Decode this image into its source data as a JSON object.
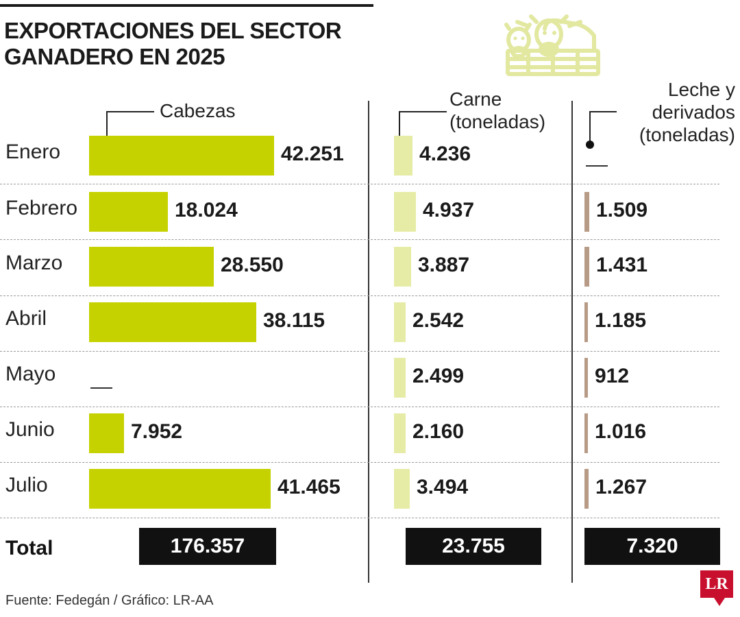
{
  "title": "EXPORTACIONES DEL SECTOR GANADERO EN 2025",
  "source": "Fuente: Fedegán / Gráfico: LR-AA",
  "logo": "LR",
  "icon": "cows-behind-fence-icon",
  "colors": {
    "cabezas": "#c5d200",
    "carne": "#e6eca6",
    "leche": "#b79b86",
    "total_bg": "#111111",
    "logo": "#c8102e"
  },
  "total_label": "Total",
  "chart_data": {
    "type": "bar",
    "orientation": "horizontal",
    "title": "EXPORTACIONES DEL SECTOR GANADERO EN 2025",
    "categories": [
      "Enero",
      "Febrero",
      "Marzo",
      "Abril",
      "Mayo",
      "Junio",
      "Julio"
    ],
    "series": [
      {
        "key": "cabezas",
        "name": "Cabezas",
        "values": [
          42251,
          18024,
          28550,
          38115,
          null,
          7952,
          41465
        ],
        "labels": [
          "42.251",
          "18.024",
          "28.550",
          "38.115",
          null,
          "7.952",
          "41.465"
        ],
        "total": "176.357"
      },
      {
        "key": "carne",
        "name": "Carne (toneladas)",
        "values": [
          4236,
          4937,
          3887,
          2542,
          2499,
          2160,
          3494
        ],
        "labels": [
          "4.236",
          "4.937",
          "3.887",
          "2.542",
          "2.499",
          "2.160",
          "3.494"
        ],
        "total": "23.755"
      },
      {
        "key": "leche",
        "name": "Leche y derivados (toneladas)",
        "values": [
          null,
          1509,
          1431,
          1185,
          912,
          1016,
          1267
        ],
        "labels": [
          null,
          "1.509",
          "1.431",
          "1.185",
          "912",
          "1.016",
          "1.267"
        ],
        "total": "7.320"
      }
    ]
  }
}
